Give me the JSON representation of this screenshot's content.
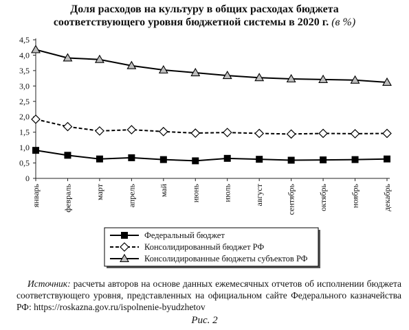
{
  "title_line1": "Доля расходов на культуру в общих расходах бюджета",
  "title_line2": "соответствующего уровня бюджетной системы в 2020 г.",
  "title_unit": "(в %)",
  "source_lead": "Источник:",
  "source_text": " расчеты авторов на основе данных ежемесячных отчетов об исполнении бюджета соответствующего уровня, представленных на официальном сайте Федерального казначейства РФ: https://roskazna.gov.ru/ispolnenie-byudzhetov",
  "figure_caption": "Рис. 2",
  "chart_data": {
    "type": "line",
    "categories": [
      "январь",
      "февраль",
      "март",
      "апрель",
      "май",
      "июнь",
      "июль",
      "август",
      "сентябрь",
      "октябрь",
      "ноябрь",
      "декабрь"
    ],
    "ylim": [
      0,
      4.5
    ],
    "yticks": [
      "0",
      "0,5",
      "1,0",
      "1,5",
      "2,0",
      "2,5",
      "3,0",
      "3,5",
      "4,0",
      "4,5"
    ],
    "grid": false,
    "legend_position": "bottom",
    "series": [
      {
        "name": "Федеральный бюджет",
        "marker": "square",
        "line": "solid",
        "values": [
          0.91,
          0.75,
          0.63,
          0.67,
          0.61,
          0.57,
          0.65,
          0.62,
          0.59,
          0.6,
          0.61,
          0.63
        ]
      },
      {
        "name": "Консолидированный бюджет РФ",
        "marker": "diamond",
        "line": "dashed",
        "values": [
          1.92,
          1.68,
          1.54,
          1.58,
          1.52,
          1.47,
          1.49,
          1.46,
          1.44,
          1.46,
          1.45,
          1.46
        ]
      },
      {
        "name": "Консолидированные бюджеты субъектов РФ",
        "marker": "triangle",
        "line": "solid",
        "values": [
          4.18,
          3.91,
          3.86,
          3.66,
          3.52,
          3.43,
          3.34,
          3.27,
          3.23,
          3.21,
          3.19,
          3.12
        ]
      }
    ]
  }
}
